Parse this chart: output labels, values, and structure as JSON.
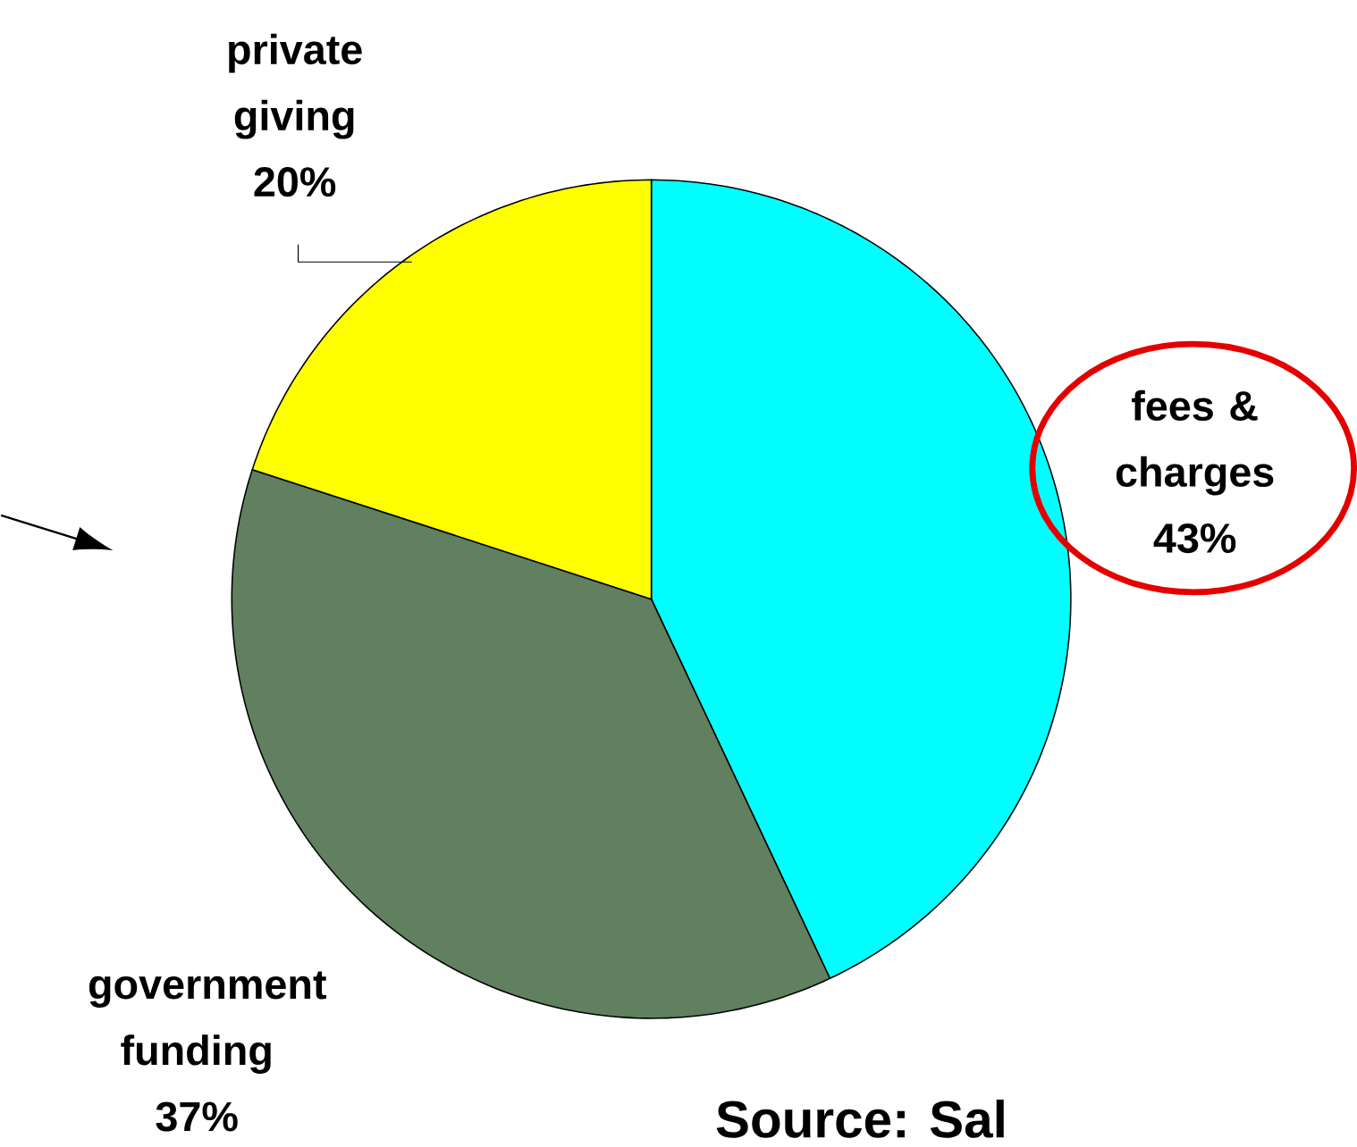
{
  "chart_data": {
    "type": "pie",
    "categories": [
      "fees & charges",
      "government funding",
      "private giving"
    ],
    "values": [
      43,
      37,
      20
    ],
    "value_labels": [
      "43%",
      "37%",
      "20%"
    ],
    "colors": [
      "#00ffff",
      "#608060",
      "#ffff00"
    ],
    "annotations": [
      "Source: Sal"
    ]
  }
}
